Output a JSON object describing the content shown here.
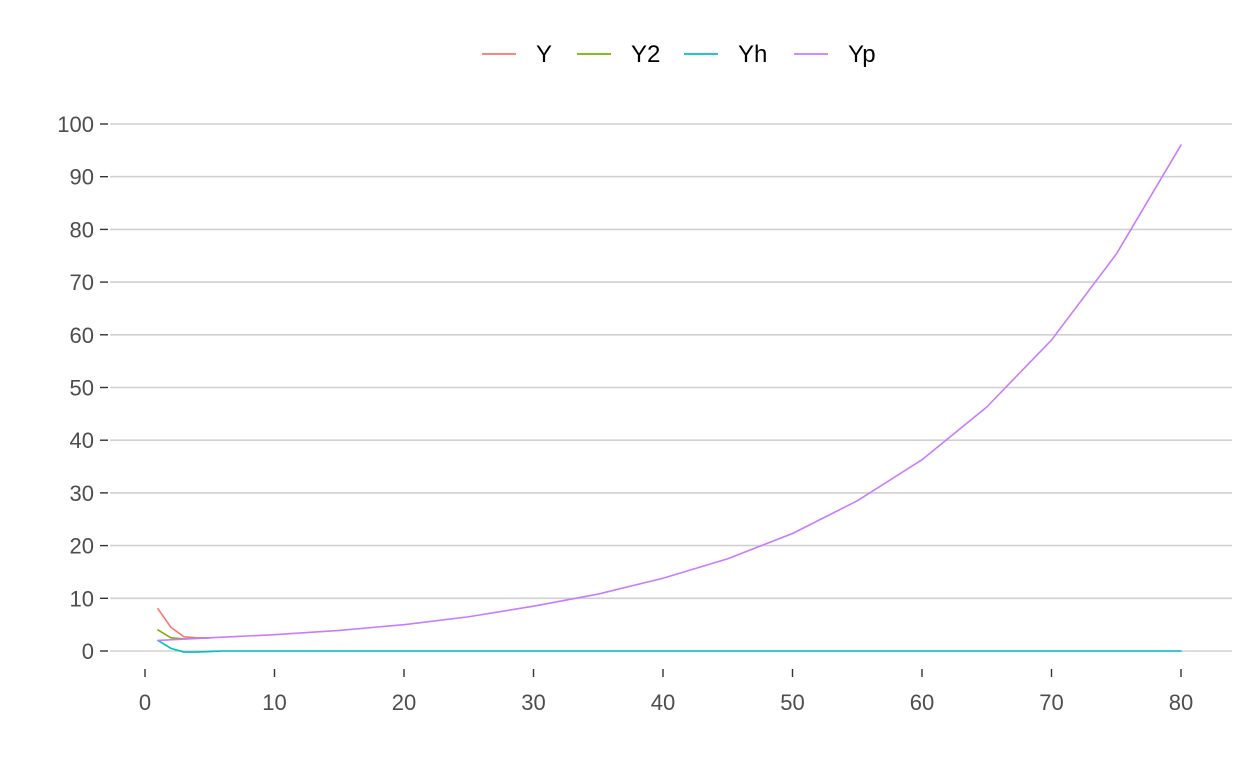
{
  "chart_data": {
    "type": "line",
    "title": "",
    "xlabel": "",
    "ylabel": "",
    "xlim": [
      0,
      80
    ],
    "ylim": [
      0,
      100
    ],
    "x_ticks": [
      0,
      10,
      20,
      30,
      40,
      50,
      60,
      70,
      80
    ],
    "y_ticks": [
      0,
      10,
      20,
      30,
      40,
      50,
      60,
      70,
      80,
      90,
      100
    ],
    "grid": "horizontal",
    "legend_position": "top",
    "series": [
      {
        "name": "Y",
        "color": "#F8766D",
        "points": [
          [
            1,
            8
          ],
          [
            2,
            4.5
          ],
          [
            3,
            2.7
          ],
          [
            4,
            2.5
          ],
          [
            5,
            2.5
          ]
        ]
      },
      {
        "name": "Y2",
        "color": "#7CAE00",
        "points": [
          [
            1,
            4
          ],
          [
            2,
            2.5
          ],
          [
            3,
            2.3
          ],
          [
            4,
            2.4
          ],
          [
            5,
            2.5
          ]
        ]
      },
      {
        "name": "Yh",
        "color": "#00BFC4",
        "points": [
          [
            1,
            2
          ],
          [
            2,
            0.5
          ],
          [
            3,
            -0.2
          ],
          [
            4,
            -0.2
          ],
          [
            5,
            -0.1
          ],
          [
            6,
            0
          ],
          [
            80,
            0
          ]
        ]
      },
      {
        "name": "Yp",
        "color": "#C77CFF",
        "points": [
          [
            1,
            2
          ],
          [
            5,
            2.5
          ],
          [
            10,
            3.1
          ],
          [
            15,
            3.9
          ],
          [
            20,
            5.0
          ],
          [
            25,
            6.5
          ],
          [
            30,
            8.5
          ],
          [
            35,
            10.8
          ],
          [
            40,
            13.8
          ],
          [
            45,
            17.5
          ],
          [
            50,
            22.3
          ],
          [
            55,
            28.5
          ],
          [
            60,
            36.3
          ],
          [
            65,
            46.3
          ],
          [
            70,
            59.0
          ],
          [
            75,
            75.3
          ],
          [
            80,
            96
          ]
        ]
      }
    ]
  }
}
